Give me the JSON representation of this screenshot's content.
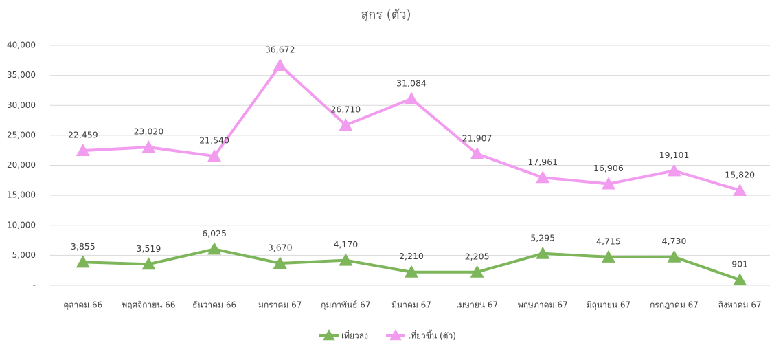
{
  "chart_data": {
    "type": "line",
    "title": "สุกร (ตัว)",
    "categories": [
      "ตุลาคม 66",
      "พฤศจิกายน 66",
      "ธันวาคม 66",
      "มกราคม 67",
      "กุมภาพันธ์ 67",
      "มีนาคม 67",
      "เมษายน 67",
      "พฤษภาคม 67",
      "มิถุนายน 67",
      "กรกฎาคม 67",
      "สิงหาคม 67"
    ],
    "series": [
      {
        "name": "เที่ยวลง",
        "color": "#7cb55a",
        "values": [
          3855,
          3519,
          6025,
          3670,
          4170,
          2210,
          2205,
          5295,
          4715,
          4730,
          901
        ],
        "value_labels": [
          "3,855",
          "3,519",
          "6,025",
          "3,670",
          "4,170",
          "2,210",
          "2,205",
          "5,295",
          "4,715",
          "4,730",
          "901"
        ]
      },
      {
        "name": "เที่ยวขึ้น (ตัว)",
        "color": "#f29cf0",
        "values": [
          22459,
          23020,
          21540,
          36672,
          26710,
          31084,
          21907,
          17961,
          16906,
          19101,
          15820
        ],
        "value_labels": [
          "22,459",
          "23,020",
          "21,540",
          "36,672",
          "26,710",
          "31,084",
          "21,907",
          "17,961",
          "16,906",
          "19,101",
          "15,820"
        ]
      }
    ],
    "ylim": [
      0,
      40000
    ],
    "yticks": [
      {
        "value": 0,
        "label": "-"
      },
      {
        "value": 5000,
        "label": "5,000"
      },
      {
        "value": 10000,
        "label": "10,000"
      },
      {
        "value": 15000,
        "label": "15,000"
      },
      {
        "value": 20000,
        "label": "20,000"
      },
      {
        "value": 25000,
        "label": "25,000"
      },
      {
        "value": 30000,
        "label": "30,000"
      },
      {
        "value": 35000,
        "label": "35,000"
      },
      {
        "value": 40000,
        "label": "40,000"
      }
    ],
    "grid": true,
    "legend": "bottom"
  }
}
